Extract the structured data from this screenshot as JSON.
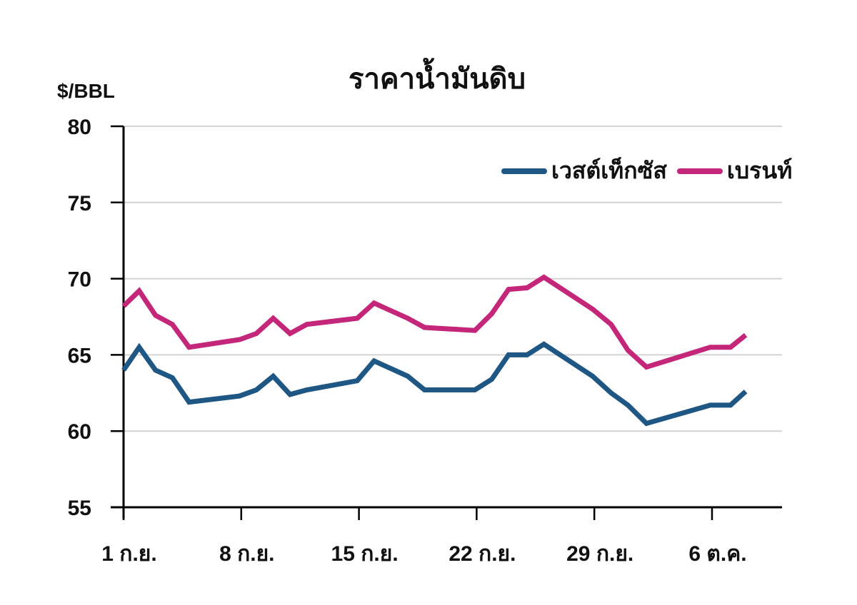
{
  "chart_data": {
    "type": "line",
    "title": "ราคาน้ำมันดิบ",
    "ylabel": "$/BBL",
    "xlabel": "",
    "ylim": [
      55,
      80
    ],
    "yticks": [
      55,
      60,
      65,
      70,
      75,
      80
    ],
    "grid": true,
    "legend_position": "top-right",
    "xtick_labels": [
      "1 ก.ย.",
      "8 ก.ย.",
      "15 ก.ย.",
      "22 ก.ย.",
      "29 ก.ย.",
      "6 ต.ค."
    ],
    "xtick_day_offsets": [
      0,
      7,
      14,
      21,
      28,
      35
    ],
    "x_day_offsets": [
      0,
      0.93,
      1.9,
      2.9,
      3.9,
      6.9,
      7.9,
      8.9,
      9.9,
      10.9,
      13.9,
      14.9,
      15.9,
      16.9,
      17.9,
      20.9,
      21.9,
      22.9,
      24.0,
      25.0,
      27.9,
      29.0,
      30.0,
      31.1,
      34.9,
      36.1,
      37.0
    ],
    "series": [
      {
        "name": "เวสต์เท็กซัส",
        "color": "#1F5784",
        "values": [
          64.0,
          65.5,
          64.0,
          63.5,
          61.9,
          62.3,
          62.7,
          63.6,
          62.4,
          62.7,
          63.3,
          64.6,
          64.1,
          63.6,
          62.7,
          62.7,
          63.4,
          65.0,
          65.0,
          65.7,
          63.6,
          62.5,
          61.7,
          60.5,
          61.7,
          61.7,
          62.6
        ]
      },
      {
        "name": "เบรนท์",
        "color": "#C4267A",
        "values": [
          68.2,
          69.2,
          67.6,
          67.0,
          65.5,
          66.0,
          66.4,
          67.4,
          66.4,
          67.0,
          67.4,
          68.4,
          67.9,
          67.4,
          66.8,
          66.6,
          67.7,
          69.3,
          69.4,
          70.1,
          68.0,
          67.0,
          65.3,
          64.2,
          65.5,
          65.5,
          66.3
        ]
      }
    ]
  },
  "header": {
    "title": "ราคาน้ำมันดิบ",
    "unit": "$/BBL"
  },
  "legend": {
    "items": [
      {
        "label": "เวสต์เท็กซัส",
        "color": "#1F5784"
      },
      {
        "label": "เบรนท์",
        "color": "#C4267A"
      }
    ]
  }
}
